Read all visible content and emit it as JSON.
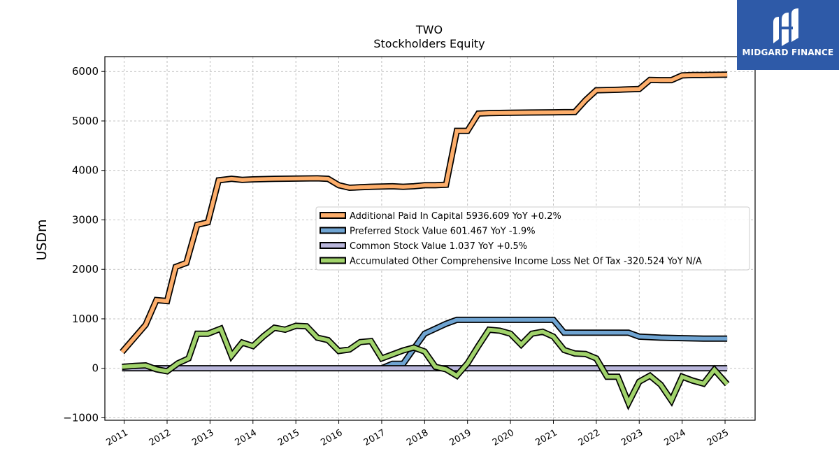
{
  "chart_data": {
    "type": "line",
    "title": "TWO",
    "subtitle": "Stockholders  Equity",
    "ylabel": "USDm",
    "xlabel": "",
    "xlim": [
      2010.55,
      2025.7
    ],
    "ylim": [
      -1050,
      6300
    ],
    "yticks": [
      -1000,
      0,
      1000,
      2000,
      3000,
      4000,
      5000,
      6000
    ],
    "ytick_labels": [
      "−1000",
      "0",
      "1000",
      "2000",
      "3000",
      "4000",
      "5000",
      "6000"
    ],
    "xticks": [
      2011,
      2012,
      2013,
      2014,
      2015,
      2016,
      2017,
      2018,
      2019,
      2020,
      2021,
      2022,
      2023,
      2024,
      2025
    ],
    "xtick_labels": [
      "2011",
      "2012",
      "2013",
      "2014",
      "2015",
      "2016",
      "2017",
      "2018",
      "2019",
      "2020",
      "2021",
      "2022",
      "2023",
      "2024",
      "2025"
    ],
    "grid": true,
    "legend_position": "center-right",
    "series": [
      {
        "name": "Additional Paid In Capital  5936.609 YoY +0.2%",
        "color": "#fdae6b",
        "x": [
          2010.95,
          2011.5,
          2011.75,
          2012.0,
          2012.2,
          2012.45,
          2012.7,
          2012.95,
          2013.2,
          2013.5,
          2013.75,
          2014.0,
          2014.5,
          2015.0,
          2015.5,
          2015.75,
          2016.0,
          2016.25,
          2016.5,
          2016.75,
          2017.0,
          2017.25,
          2017.5,
          2017.75,
          2018.0,
          2018.25,
          2018.5,
          2018.75,
          2019.0,
          2019.25,
          2019.5,
          2020.0,
          2020.5,
          2021.0,
          2021.25,
          2021.5,
          2021.75,
          2022.0,
          2022.25,
          2022.5,
          2022.75,
          2023.0,
          2023.25,
          2023.5,
          2023.75,
          2024.0,
          2024.25,
          2024.5,
          2024.75,
          2025.05
        ],
        "y": [
          330,
          880,
          1380,
          1360,
          2050,
          2130,
          2900,
          2950,
          3800,
          3830,
          3810,
          3820,
          3830,
          3835,
          3840,
          3830,
          3700,
          3650,
          3660,
          3670,
          3675,
          3680,
          3670,
          3680,
          3700,
          3700,
          3710,
          4800,
          4800,
          5150,
          5160,
          5165,
          5170,
          5175,
          5178,
          5180,
          5420,
          5620,
          5625,
          5630,
          5640,
          5645,
          5830,
          5825,
          5825,
          5920,
          5928,
          5930,
          5933,
          5936.609
        ]
      },
      {
        "name": "Preferred Stock Value  601.467 YoY -1.9%",
        "color": "#6fa4d2",
        "x": [
          2017.0,
          2017.25,
          2017.5,
          2017.75,
          2018.0,
          2018.25,
          2018.5,
          2018.75,
          2019.0,
          2019.5,
          2020.0,
          2020.5,
          2021.0,
          2021.25,
          2021.5,
          2022.0,
          2022.5,
          2022.75,
          2023.0,
          2023.5,
          2024.0,
          2024.5,
          2025.05
        ],
        "y": [
          0,
          90,
          90,
          400,
          700,
          800,
          900,
          980,
          980,
          980,
          980,
          980,
          980,
          720,
          720,
          720,
          720,
          720,
          640,
          620,
          610,
          600,
          601.467
        ]
      },
      {
        "name": "Common Stock Value  1.037 YoY +0.5%",
        "color": "#b9b6db",
        "x": [
          2010.95,
          2025.05
        ],
        "y": [
          1,
          1.037
        ]
      },
      {
        "name": "Accumulated Other Comprehensive Income Loss Net Of Tax  -320.524 YoY N/A",
        "color": "#a1d36b",
        "x": [
          2010.95,
          2011.25,
          2011.5,
          2011.75,
          2012.0,
          2012.25,
          2012.5,
          2012.7,
          2012.95,
          2013.25,
          2013.5,
          2013.75,
          2014.0,
          2014.25,
          2014.5,
          2014.75,
          2015.0,
          2015.25,
          2015.5,
          2015.75,
          2016.0,
          2016.25,
          2016.5,
          2016.75,
          2017.0,
          2017.25,
          2017.5,
          2017.75,
          2018.0,
          2018.25,
          2018.5,
          2018.75,
          2019.0,
          2019.25,
          2019.5,
          2019.75,
          2020.0,
          2020.25,
          2020.5,
          2020.75,
          2021.0,
          2021.25,
          2021.5,
          2021.75,
          2022.0,
          2022.25,
          2022.5,
          2022.75,
          2023.0,
          2023.25,
          2023.5,
          2023.75,
          2024.0,
          2024.25,
          2024.5,
          2024.75,
          2025.05
        ],
        "y": [
          30,
          50,
          60,
          -20,
          -60,
          100,
          200,
          700,
          700,
          800,
          250,
          520,
          450,
          650,
          820,
          780,
          860,
          850,
          620,
          570,
          350,
          380,
          530,
          550,
          200,
          280,
          360,
          420,
          340,
          30,
          -20,
          -150,
          100,
          450,
          780,
          760,
          700,
          480,
          700,
          740,
          640,
          370,
          300,
          290,
          200,
          -170,
          -170,
          -700,
          -270,
          -150,
          -330,
          -650,
          -170,
          -250,
          -310,
          -30,
          -320.524
        ]
      }
    ]
  },
  "logo": {
    "text": "MIDGARD FINANCE",
    "background": "#2e5aa8"
  }
}
